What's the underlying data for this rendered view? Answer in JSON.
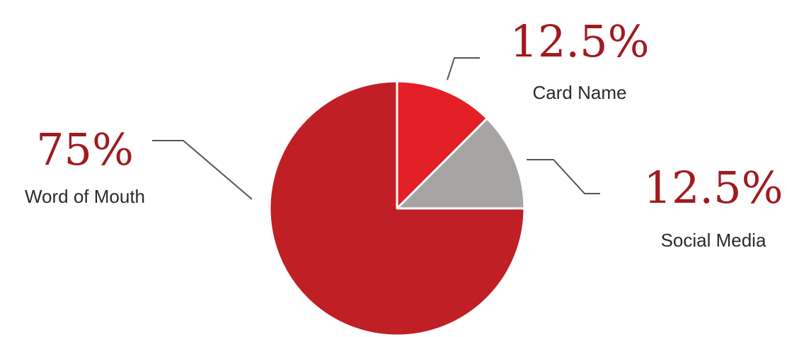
{
  "chart_data": {
    "type": "pie",
    "categories": [
      "Card Name",
      "Social Media",
      "Word of Mouth"
    ],
    "values": [
      12.5,
      12.5,
      75
    ],
    "value_labels": [
      "12.5%",
      "12.5%",
      "75%"
    ],
    "colors": [
      "#e41f26",
      "#a7a5a4",
      "#c01f25"
    ],
    "label_color": "#a11a1f",
    "start_angle_deg": 0,
    "direction": "clockwise",
    "legend": "none"
  }
}
